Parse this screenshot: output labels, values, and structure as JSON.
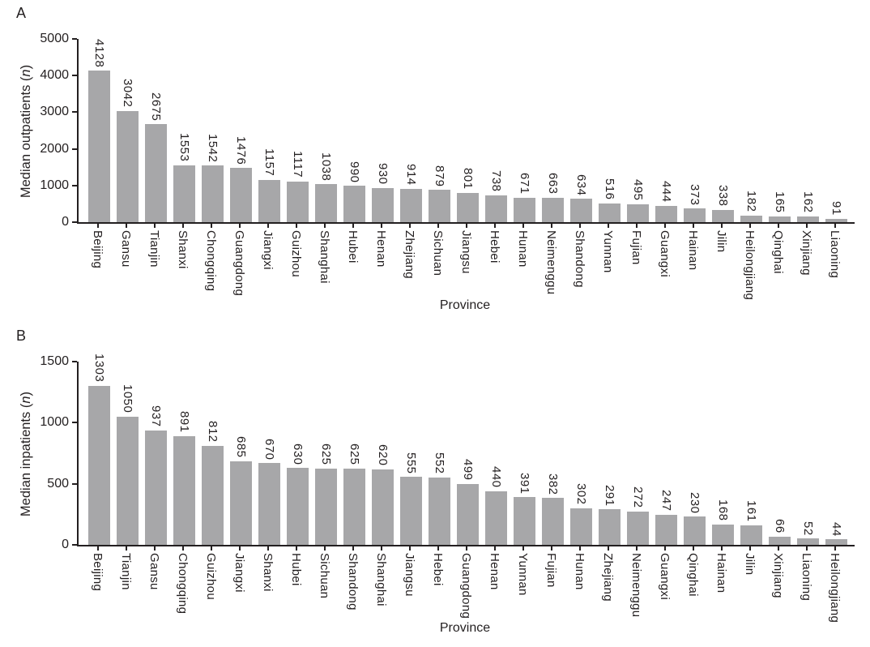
{
  "chart_data": [
    {
      "type": "bar",
      "panel_label": "A",
      "ylabel": "Median outpatients (n)",
      "xlabel": "Province",
      "ylim": [
        0,
        5000
      ],
      "yticks": [
        0,
        1000,
        2000,
        3000,
        4000,
        5000
      ],
      "bar_color": "#a7a7a9",
      "axis_color": "#231f20",
      "legend": "none",
      "grid": "off",
      "categories": [
        "Beijing",
        "Gansu",
        "Tianjin",
        "Shanxi",
        "Chongqing",
        "Guangdong",
        "Jiangxi",
        "Guizhou",
        "Shanghai",
        "Hubei",
        "Henan",
        "Zhejiang",
        "Sichuan",
        "Jiangsu",
        "Hebei",
        "Hunan",
        "Neimenggu",
        "Shandong",
        "Yunnan",
        "Fujian",
        "Guangxi",
        "Hainan",
        "Jilin",
        "Heilongjiang",
        "Qinghai",
        "Xinjiang",
        "Liaoning"
      ],
      "values": [
        4128,
        3042,
        2675,
        1553,
        1542,
        1476,
        1157,
        1117,
        1038,
        990,
        930,
        914,
        879,
        801,
        738,
        671,
        663,
        634,
        516,
        495,
        444,
        373,
        338,
        182,
        165,
        162,
        91
      ]
    },
    {
      "type": "bar",
      "panel_label": "B",
      "ylabel": "Median inpatients (n)",
      "xlabel": "Province",
      "ylim": [
        0,
        1500
      ],
      "yticks": [
        0,
        500,
        1000,
        1500
      ],
      "bar_color": "#a7a7a9",
      "axis_color": "#231f20",
      "legend": "none",
      "grid": "off",
      "categories": [
        "Beijing",
        "Tianjin",
        "Gansu",
        "Chongqing",
        "Guizhou",
        "Jiangxi",
        "Shanxi",
        "Hubei",
        "Sichuan",
        "Shandong",
        "Shanghai",
        "Jiangsu",
        "Hebei",
        "Guangdong",
        "Henan",
        "Yunnan",
        "Fujian",
        "Hunan",
        "Zhejiang",
        "Neimenggu",
        "Guangxi",
        "Qinghai",
        "Hainan",
        "Jilin",
        "Xinjiang",
        "Liaoning",
        "Heilongjiang"
      ],
      "values": [
        1303,
        1050,
        937,
        891,
        812,
        685,
        670,
        630,
        625,
        625,
        620,
        555,
        552,
        499,
        440,
        391,
        382,
        302,
        291,
        272,
        247,
        230,
        168,
        161,
        66,
        52,
        44
      ]
    }
  ]
}
